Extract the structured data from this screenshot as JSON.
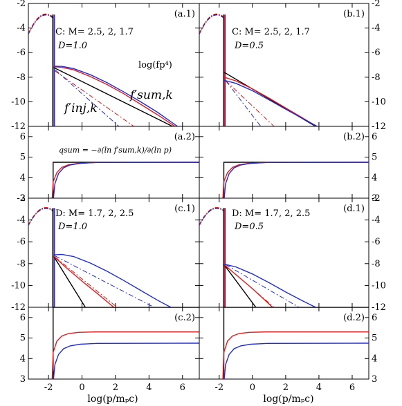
{
  "figure": {
    "x_axis_label": "log(p/mₚc)",
    "colors": {
      "black": "#000000",
      "red": "#e8191a",
      "blue": "#1f2bd8",
      "frame": "#000000"
    }
  },
  "chart_data": [
    {
      "id": "a1",
      "type": "line",
      "panel_label": "(a.1)",
      "annotation_model": "C: M= 2.5, 2, 1.7",
      "annotation_D": "D=1.0",
      "annotation_logfp4": "log(fp⁴)",
      "label_fsum": "f′sum,k",
      "label_finj": "f′inj,k",
      "xlim": [
        -3.2,
        7.0
      ],
      "ylim": [
        -12,
        -2
      ],
      "x_ticks": [
        -2,
        0,
        2,
        4,
        6
      ],
      "y_ticks": [
        -12,
        -10,
        -8,
        -6,
        -4,
        -2
      ],
      "legend": "none",
      "grid": false,
      "injection": {
        "xpk": -2.15,
        "ypk": -2.9,
        "sigma": 0.62,
        "xmin": -3.2,
        "xmax": -1.72
      },
      "series": [
        {
          "color": "black",
          "style": "solid",
          "x": [
            -1.7,
            5.4
          ],
          "y": [
            -7.2,
            -12.0
          ]
        },
        {
          "color": "red",
          "style": "solid",
          "x": [
            -1.7,
            -1.2,
            -0.5,
            0.5,
            1.5,
            2.5,
            3.5,
            4.5,
            5.55
          ],
          "y": [
            -7.15,
            -7.2,
            -7.4,
            -7.95,
            -8.6,
            -9.35,
            -10.2,
            -11.05,
            -12.0
          ]
        },
        {
          "color": "blue",
          "style": "solid",
          "x": [
            -1.7,
            -1.2,
            -0.5,
            0.5,
            1.5,
            2.5,
            3.5,
            4.5,
            5.7
          ],
          "y": [
            -7.1,
            -7.12,
            -7.3,
            -7.8,
            -8.45,
            -9.2,
            -10.0,
            -10.85,
            -12.0
          ]
        },
        {
          "color": "red",
          "style": "dashdot",
          "x": [
            -1.6,
            3.1
          ],
          "y": [
            -7.5,
            -12.0
          ]
        },
        {
          "color": "blue",
          "style": "dashdot",
          "x": [
            -1.6,
            2.2
          ],
          "y": [
            -7.4,
            -12.0
          ]
        }
      ]
    },
    {
      "id": "b1",
      "type": "line",
      "panel_label": "(b.1)",
      "annotation_model": "C: M= 2.5, 2, 1.7",
      "annotation_D": "D=0.5",
      "xlim": [
        -3.2,
        7.0
      ],
      "ylim": [
        -12,
        -2
      ],
      "x_ticks": [
        -2,
        0,
        2,
        4,
        6
      ],
      "y_ticks": [
        -12,
        -10,
        -8,
        -6,
        -4,
        -2
      ],
      "legend": "none",
      "grid": false,
      "injection": {
        "xpk": -2.15,
        "ypk": -2.9,
        "sigma": 0.62,
        "xmin": -3.2,
        "xmax": -1.72
      },
      "series": [
        {
          "color": "black",
          "style": "solid",
          "x": [
            -1.7,
            3.8
          ],
          "y": [
            -7.6,
            -12.0
          ]
        },
        {
          "color": "red",
          "style": "solid",
          "x": [
            -1.7,
            -1.0,
            0.0,
            1.0,
            2.0,
            3.0,
            3.85
          ],
          "y": [
            -8.0,
            -8.3,
            -8.95,
            -9.7,
            -10.5,
            -11.3,
            -12.0
          ]
        },
        {
          "color": "blue",
          "style": "solid",
          "x": [
            -1.7,
            -1.0,
            0.0,
            1.0,
            2.0,
            3.0,
            3.9
          ],
          "y": [
            -8.25,
            -8.5,
            -9.1,
            -9.85,
            -10.6,
            -11.35,
            -12.0
          ]
        },
        {
          "color": "red",
          "style": "dashdot",
          "x": [
            -1.6,
            1.3
          ],
          "y": [
            -8.3,
            -12.0
          ]
        },
        {
          "color": "blue",
          "style": "dashdot",
          "x": [
            -1.6,
            0.5
          ],
          "y": [
            -8.3,
            -12.0
          ]
        }
      ]
    },
    {
      "id": "a2",
      "type": "line",
      "panel_label": "(a.2)",
      "annotation_q": "qsum = −∂(ln f′sum,k)/∂(ln p)",
      "xlim": [
        -3.2,
        7.0
      ],
      "ylim": [
        3,
        6.5
      ],
      "x_ticks": [
        -2,
        0,
        2,
        4,
        6
      ],
      "y_ticks": [
        3,
        4,
        5,
        6
      ],
      "legend": "none",
      "grid": false,
      "series": [
        {
          "color": "black",
          "style": "solid",
          "x": [
            -1.72,
            -1.72,
            7.0
          ],
          "y": [
            3.0,
            4.75,
            4.75
          ]
        },
        {
          "color": "red",
          "style": "solid",
          "x": [
            -1.78,
            -1.72,
            -1.5,
            -1.2,
            -0.8,
            -0.2,
            0.8,
            7.0
          ],
          "y": [
            3.0,
            3.8,
            4.25,
            4.5,
            4.63,
            4.7,
            4.74,
            4.75
          ]
        },
        {
          "color": "blue",
          "style": "solid",
          "x": [
            -1.7,
            -1.62,
            -1.4,
            -1.1,
            -0.7,
            -0.1,
            0.9,
            7.0
          ],
          "y": [
            3.0,
            3.7,
            4.2,
            4.48,
            4.62,
            4.7,
            4.74,
            4.75
          ]
        }
      ]
    },
    {
      "id": "b2",
      "type": "line",
      "panel_label": "(b.2)",
      "xlim": [
        -3.2,
        7.0
      ],
      "ylim": [
        3,
        6.5
      ],
      "x_ticks": [
        -2,
        0,
        2,
        4,
        6
      ],
      "y_ticks": [
        3,
        4,
        5,
        6
      ],
      "legend": "none",
      "grid": false,
      "series": [
        {
          "color": "black",
          "style": "solid",
          "x": [
            -1.72,
            -1.72,
            7.0
          ],
          "y": [
            3.0,
            4.75,
            4.75
          ]
        },
        {
          "color": "red",
          "style": "solid",
          "x": [
            -1.78,
            -1.72,
            -1.5,
            -1.2,
            -0.8,
            -0.2,
            0.8,
            7.0
          ],
          "y": [
            3.0,
            3.8,
            4.25,
            4.5,
            4.63,
            4.7,
            4.74,
            4.75
          ]
        },
        {
          "color": "blue",
          "style": "solid",
          "x": [
            -1.7,
            -1.62,
            -1.4,
            -1.1,
            -0.7,
            -0.1,
            0.9,
            7.0
          ],
          "y": [
            3.0,
            3.7,
            4.2,
            4.48,
            4.62,
            4.7,
            4.74,
            4.75
          ]
        }
      ]
    },
    {
      "id": "c1",
      "type": "line",
      "panel_label": "(c.1)",
      "annotation_model": "D: M= 1.7, 2, 2.5",
      "annotation_D": "D=1.0",
      "xlim": [
        -3.2,
        7.0
      ],
      "ylim": [
        -12,
        -2
      ],
      "x_ticks": [
        -2,
        0,
        2,
        4,
        6
      ],
      "y_ticks": [
        -12,
        -10,
        -8,
        -6,
        -4,
        -2
      ],
      "legend": "none",
      "grid": false,
      "injection": {
        "xpk": -2.15,
        "ypk": -2.9,
        "sigma": 0.62,
        "xmin": -3.2,
        "xmax": -1.72
      },
      "series": [
        {
          "color": "black",
          "style": "solid",
          "x": [
            -1.7,
            0.2
          ],
          "y": [
            -7.3,
            -12.0
          ]
        },
        {
          "color": "red",
          "style": "solid",
          "x": [
            -1.7,
            -1.0,
            0.0,
            1.0,
            1.9
          ],
          "y": [
            -7.3,
            -8.3,
            -9.6,
            -10.85,
            -12.0
          ]
        },
        {
          "color": "blue",
          "style": "solid",
          "x": [
            -1.7,
            -1.2,
            -0.5,
            0.5,
            1.5,
            2.5,
            3.5,
            4.5,
            5.3
          ],
          "y": [
            -7.2,
            -7.15,
            -7.35,
            -7.95,
            -8.7,
            -9.55,
            -10.45,
            -11.35,
            -12.0
          ]
        },
        {
          "color": "red",
          "style": "dashdot",
          "x": [
            -1.6,
            2.1
          ],
          "y": [
            -7.4,
            -12.0
          ]
        },
        {
          "color": "blue",
          "style": "dashdot",
          "x": [
            -1.6,
            4.3
          ],
          "y": [
            -7.3,
            -12.0
          ]
        }
      ]
    },
    {
      "id": "d1",
      "type": "line",
      "panel_label": "(d.1)",
      "annotation_model": "D: M= 1.7, 2, 2.5",
      "annotation_D": "D=0.5",
      "xlim": [
        -3.2,
        7.0
      ],
      "ylim": [
        -12,
        -2
      ],
      "x_ticks": [
        -2,
        0,
        2,
        4,
        6
      ],
      "y_ticks": [
        -12,
        -10,
        -8,
        -6,
        -4,
        -2
      ],
      "legend": "none",
      "grid": false,
      "injection": {
        "xpk": -2.15,
        "ypk": -2.9,
        "sigma": 0.62,
        "xmin": -3.2,
        "xmax": -1.72
      },
      "series": [
        {
          "color": "black",
          "style": "solid",
          "x": [
            -1.7,
            0.2
          ],
          "y": [
            -8.1,
            -12.0
          ]
        },
        {
          "color": "red",
          "style": "solid",
          "x": [
            -1.7,
            -1.0,
            0.0,
            1.0,
            1.2
          ],
          "y": [
            -8.1,
            -9.0,
            -10.3,
            -11.7,
            -12.0
          ]
        },
        {
          "color": "blue",
          "style": "solid",
          "x": [
            -1.7,
            -1.0,
            0.0,
            1.0,
            2.0,
            3.0,
            3.8
          ],
          "y": [
            -8.05,
            -8.3,
            -8.95,
            -9.75,
            -10.6,
            -11.4,
            -12.0
          ]
        },
        {
          "color": "red",
          "style": "dashdot",
          "x": [
            -1.6,
            1.3
          ],
          "y": [
            -8.2,
            -12.0
          ]
        },
        {
          "color": "blue",
          "style": "dashdot",
          "x": [
            -1.6,
            2.8
          ],
          "y": [
            -8.1,
            -12.0
          ]
        }
      ]
    },
    {
      "id": "c2",
      "type": "line",
      "panel_label": "(c.2)",
      "xlim": [
        -3.2,
        7.0
      ],
      "ylim": [
        3,
        6.5
      ],
      "x_ticks": [
        -2,
        0,
        2,
        4,
        6
      ],
      "y_ticks": [
        3,
        4,
        5,
        6
      ],
      "legend": "none",
      "grid": false,
      "series": [
        {
          "color": "black",
          "style": "solid",
          "x": [
            -1.72,
            -1.72,
            7.0
          ],
          "y": [
            3.0,
            6.5,
            6.5
          ]
        },
        {
          "color": "red",
          "style": "solid",
          "x": [
            -1.78,
            -1.72,
            -1.5,
            -1.2,
            -0.8,
            -0.2,
            0.8,
            7.0
          ],
          "y": [
            3.0,
            4.3,
            4.85,
            5.1,
            5.22,
            5.28,
            5.3,
            5.3
          ]
        },
        {
          "color": "blue",
          "style": "solid",
          "x": [
            -1.7,
            -1.62,
            -1.4,
            -1.1,
            -0.7,
            -0.1,
            0.9,
            7.0
          ],
          "y": [
            3.0,
            3.7,
            4.2,
            4.48,
            4.62,
            4.7,
            4.74,
            4.75
          ]
        }
      ]
    },
    {
      "id": "d2",
      "type": "line",
      "panel_label": "(d.2)",
      "xlim": [
        -3.2,
        7.0
      ],
      "ylim": [
        3,
        6.5
      ],
      "x_ticks": [
        -2,
        0,
        2,
        4,
        6
      ],
      "y_ticks": [
        3,
        4,
        5,
        6
      ],
      "legend": "none",
      "grid": false,
      "series": [
        {
          "color": "black",
          "style": "solid",
          "x": [
            -1.72,
            -1.72,
            7.0
          ],
          "y": [
            3.0,
            6.5,
            6.5
          ]
        },
        {
          "color": "red",
          "style": "solid",
          "x": [
            -1.78,
            -1.72,
            -1.5,
            -1.2,
            -0.8,
            -0.2,
            0.8,
            7.0
          ],
          "y": [
            3.0,
            4.3,
            4.85,
            5.1,
            5.22,
            5.28,
            5.3,
            5.3
          ]
        },
        {
          "color": "blue",
          "style": "solid",
          "x": [
            -1.7,
            -1.62,
            -1.4,
            -1.1,
            -0.7,
            -0.1,
            0.9,
            7.0
          ],
          "y": [
            3.0,
            3.7,
            4.2,
            4.48,
            4.62,
            4.7,
            4.74,
            4.75
          ]
        }
      ]
    }
  ]
}
